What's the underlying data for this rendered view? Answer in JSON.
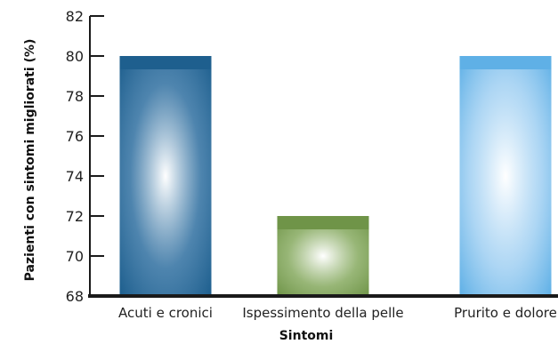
{
  "chart_data": {
    "type": "bar",
    "title": "",
    "xlabel": "Sintomi",
    "ylabel": "Pazienti con sintomi migliorati (%)",
    "categories": [
      "Acuti e cronici",
      "Ispessimento della pelle",
      "Prurito e dolore"
    ],
    "values": [
      80,
      72,
      80
    ],
    "ylim": [
      68,
      82
    ],
    "yticks": [
      "68",
      "70",
      "72",
      "74",
      "76",
      "78",
      "80",
      "82"
    ],
    "grid": false,
    "bar_colors": [
      {
        "cap": "#1e5f8e",
        "edge": "#2f6fa0",
        "center": "#ffffff"
      },
      {
        "cap": "#6f9448",
        "edge": "#85a95e",
        "center": "#ffffff"
      },
      {
        "cap": "#5fb0e6",
        "edge": "#9fcff2",
        "center": "#ffffff"
      }
    ],
    "axis_color": "#1a1a1a"
  }
}
